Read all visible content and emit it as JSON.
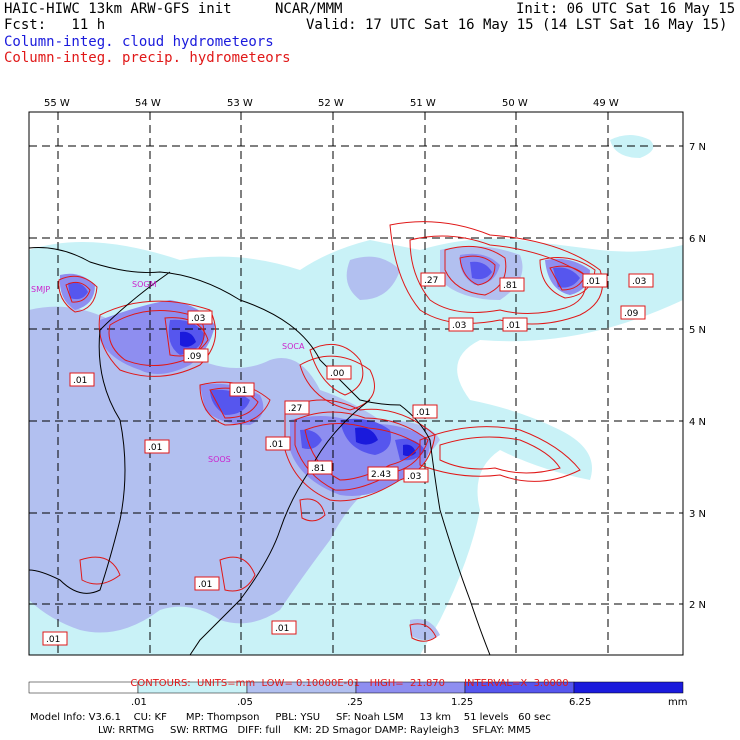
{
  "header": {
    "title_left": "HAIC-HIWC 13km ARW-GFS init",
    "title_org": "NCAR/MMM",
    "init": "Init: 06 UTC Sat 16 May 15",
    "fcst": "Fcst:   11 h",
    "valid": "Valid: 17 UTC Sat 16 May 15 (14 LST Sat 16 May 15)",
    "field_cloud": "Column-integ. cloud hydrometeors",
    "field_precip": "Column-integ. precip. hydrometeors"
  },
  "map": {
    "lon_labels": [
      "55 W",
      "54 W",
      "53 W",
      "52 W",
      "51 W",
      "50 W",
      "49 W"
    ],
    "lat_labels": [
      "7 N",
      "6 N",
      "5 N",
      "4 N",
      "3 N",
      "2 N"
    ],
    "station_labels": [
      "SMJP",
      "SOCA",
      "SOOS",
      "SOGM"
    ],
    "contour_labels": [
      ".03",
      ".09",
      ".01",
      ".01",
      ".01",
      ".27",
      ".01",
      ".81",
      ".00",
      ".01",
      "2.43",
      ".03",
      ".27",
      ".81",
      ".01",
      ".03",
      ".09",
      ".03",
      ".01",
      ".01",
      ".01",
      ".01"
    ],
    "colors": {
      "cloud": "#1a1adc",
      "precip": "#e01818",
      "coast": "#000000",
      "grid": "#000000"
    }
  },
  "contours_line": {
    "label": "CONTOURS:",
    "units": "UNITS=mm",
    "low": "LOW= 0.10000E-01",
    "high": "HIGH=  21.870",
    "interval": "INTERVAL=X  3.0000"
  },
  "colorbar": {
    "tick_labels": [
      ".01",
      ".05",
      ".25",
      "1.25",
      "6.25"
    ],
    "units": "mm",
    "bins": [
      "#ffffff",
      "#c9f2f7",
      "#b2c0f0",
      "#8e8ef0",
      "#5656ee",
      "#1a1adc"
    ]
  },
  "footer": {
    "line1": "Model Info: V3.6.1    CU: KF      MP: Thompson     PBL: YSU     SF: Noah LSM     13 km    51 levels   60 sec",
    "line2": "LW: RRTMG     SW: RRTMG   DIFF: full    KM: 2D Smagor DAMP: Rayleigh3    SFLAY: MM5"
  }
}
